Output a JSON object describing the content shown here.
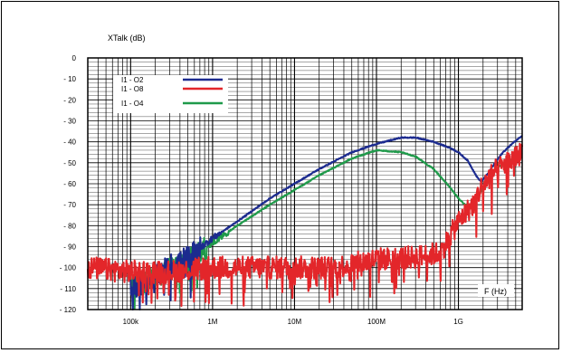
{
  "chart_data": {
    "type": "line",
    "ylabel": "XTalk (dB)",
    "xlabel": "F (Hz)",
    "x_scale": "log",
    "xlim": [
      30000,
      6000000000
    ],
    "ylim": [
      -120,
      0
    ],
    "y_ticks": [
      0,
      -10,
      -20,
      -30,
      -40,
      -50,
      -60,
      -70,
      -80,
      -90,
      -100,
      -110,
      -120
    ],
    "y_tick_labels": [
      "0",
      "- 10",
      "- 20",
      "- 30",
      "- 40",
      "- 50",
      "- 60",
      "- 70",
      "- 80",
      "- 90",
      "- 100",
      "- 110",
      "- 120"
    ],
    "x_ticks": [
      100000,
      1000000,
      10000000,
      100000000,
      1000000000
    ],
    "x_tick_labels": [
      "100k",
      "1M",
      "10M",
      "100M",
      "1G"
    ],
    "grid": true,
    "legend_position": "top-left",
    "series": [
      {
        "name": "I1 - O2",
        "color": "#1c2b8f",
        "x": [
          100000,
          200000,
          300000,
          500000,
          1000000,
          2000000,
          5000000,
          10000000,
          20000000,
          50000000,
          100000000,
          200000000,
          300000000,
          500000000,
          800000000,
          1000000000,
          1300000000,
          1700000000,
          1900000000,
          2300000000,
          2800000000,
          3500000000,
          4500000000,
          6000000000
        ],
        "values": [
          -110,
          -104,
          -99,
          -95,
          -86,
          -78,
          -67,
          -60,
          -53,
          -45,
          -41,
          -38,
          -38,
          -40,
          -43,
          -45,
          -49,
          -57,
          -59,
          -55,
          -50,
          -45,
          -41,
          -37
        ],
        "noise_floor": [
          -112,
          -105,
          -99,
          -95,
          -92,
          -90,
          -89,
          -88,
          -88,
          -88,
          -88,
          -88,
          -88,
          -88,
          -88,
          -88,
          -88,
          -88,
          -88,
          -88,
          -88,
          -88,
          -88,
          -88
        ]
      },
      {
        "name": "I1 - O8",
        "color": "#e3262a",
        "x": [
          30000,
          100000,
          300000,
          1000000,
          3000000,
          10000000,
          30000000,
          100000000,
          300000000,
          600000000,
          1000000000,
          1500000000,
          2000000000,
          3000000000,
          4000000000,
          6000000000
        ],
        "values": [
          -100,
          -102,
          -102,
          -100,
          -100,
          -100,
          -100,
          -96,
          -95,
          -93,
          -78,
          -70,
          -60,
          -53,
          -50,
          -45
        ],
        "noise_floor": [
          -102,
          -103,
          -102,
          -101,
          -101,
          -101,
          -101,
          -98,
          -97,
          -95,
          -80,
          -71,
          -60,
          -53,
          -50,
          -45
        ]
      },
      {
        "name": "I1 - O4",
        "color": "#1f9a4a",
        "x": [
          100000,
          200000,
          300000,
          500000,
          1000000,
          2000000,
          5000000,
          10000000,
          20000000,
          50000000,
          100000000,
          200000000,
          300000000,
          500000000,
          800000000,
          1000000000,
          1200000000,
          1500000000,
          2000000000,
          3000000000,
          4000000000,
          6000000000
        ],
        "values": [
          -110,
          -105,
          -100,
          -97,
          -88,
          -80,
          -70,
          -63,
          -56,
          -48,
          -44,
          -45,
          -47,
          -53,
          -62,
          -67,
          -70,
          -70,
          -62,
          -52,
          -50,
          -45
        ],
        "noise_floor": [
          -113,
          -106,
          -100,
          -97,
          -92,
          -90,
          -89,
          -88,
          -88,
          -88,
          -88,
          -88,
          -88,
          -88,
          -88,
          -88,
          -88,
          -88,
          -88,
          -88,
          -88,
          -88
        ]
      }
    ]
  }
}
